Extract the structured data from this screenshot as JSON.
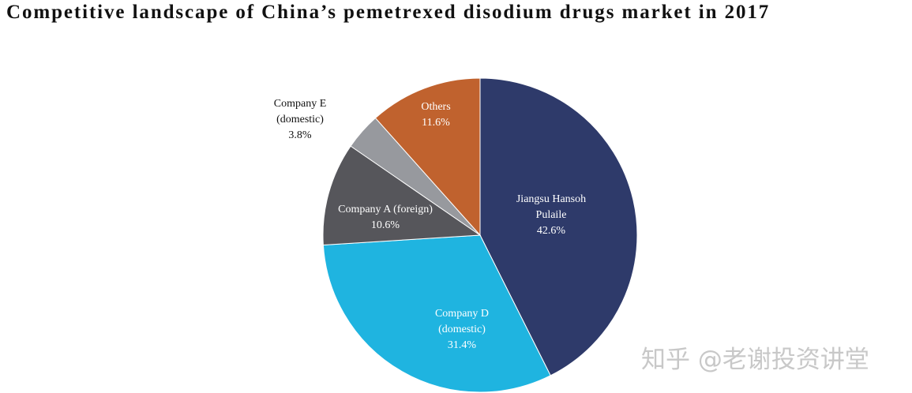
{
  "chart_data": {
    "type": "pie",
    "title": "Competitive landscape of China’s pemetrexed disodium drugs market in 2017",
    "categories": [
      "Jiangsu Hansoh Pulaile",
      "Company D (domestic)",
      "Company A (foreign)",
      "Company E (domestic)",
      "Others"
    ],
    "values": [
      42.6,
      31.4,
      10.6,
      3.8,
      11.6
    ],
    "value_labels": [
      "42.6%",
      "31.4%",
      "10.6%",
      "3.8%",
      "11.6%"
    ],
    "colors": [
      "#2e3a6a",
      "#1fb4e0",
      "#56565b",
      "#97999e",
      "#c0622e"
    ],
    "watermark": "知乎 @老谢投资讲堂"
  }
}
